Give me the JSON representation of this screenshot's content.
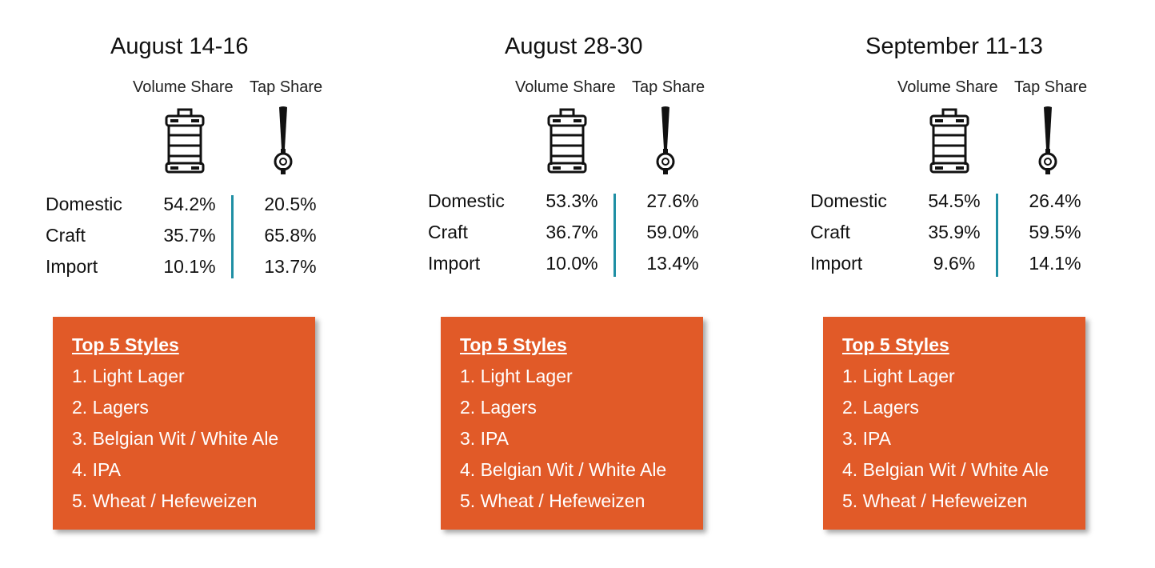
{
  "column_headers": {
    "volume": "Volume Share",
    "tap": "Tap Share"
  },
  "card_heading": "Top 5 Styles",
  "icons": {
    "keg": "beer-keg-icon",
    "tap": "beer-tap-handle-icon"
  },
  "colors": {
    "card": "#e15a28",
    "divider": "#1f8fa4"
  },
  "periods": [
    {
      "title": "August 14-16",
      "rows": [
        {
          "label": "Domestic",
          "volume": "54.2%",
          "tap": "20.5%"
        },
        {
          "label": "Craft",
          "volume": "35.7%",
          "tap": "65.8%"
        },
        {
          "label": "Import",
          "volume": "10.1%",
          "tap": "13.7%"
        }
      ],
      "styles": [
        "1. Light Lager",
        "2. Lagers",
        "3. Belgian Wit / White Ale",
        "4. IPA",
        "5. Wheat / Hefeweizen"
      ]
    },
    {
      "title": "August 28-30",
      "rows": [
        {
          "label": "Domestic",
          "volume": "53.3%",
          "tap": "27.6%"
        },
        {
          "label": "Craft",
          "volume": "36.7%",
          "tap": "59.0%"
        },
        {
          "label": "Import",
          "volume": "10.0%",
          "tap": "13.4%"
        }
      ],
      "styles": [
        "1. Light Lager",
        "2. Lagers",
        "3. IPA",
        "4. Belgian Wit / White Ale",
        "5. Wheat / Hefeweizen"
      ]
    },
    {
      "title": "September 11-13",
      "rows": [
        {
          "label": "Domestic",
          "volume": "54.5%",
          "tap": "26.4%"
        },
        {
          "label": "Craft",
          "volume": "35.9%",
          "tap": "59.5%"
        },
        {
          "label": "Import",
          "volume": "9.6%",
          "tap": "14.1%"
        }
      ],
      "styles": [
        "1. Light Lager",
        "2. Lagers",
        "3. IPA",
        "4. Belgian Wit / White Ale",
        "5. Wheat / Hefeweizen"
      ]
    }
  ]
}
